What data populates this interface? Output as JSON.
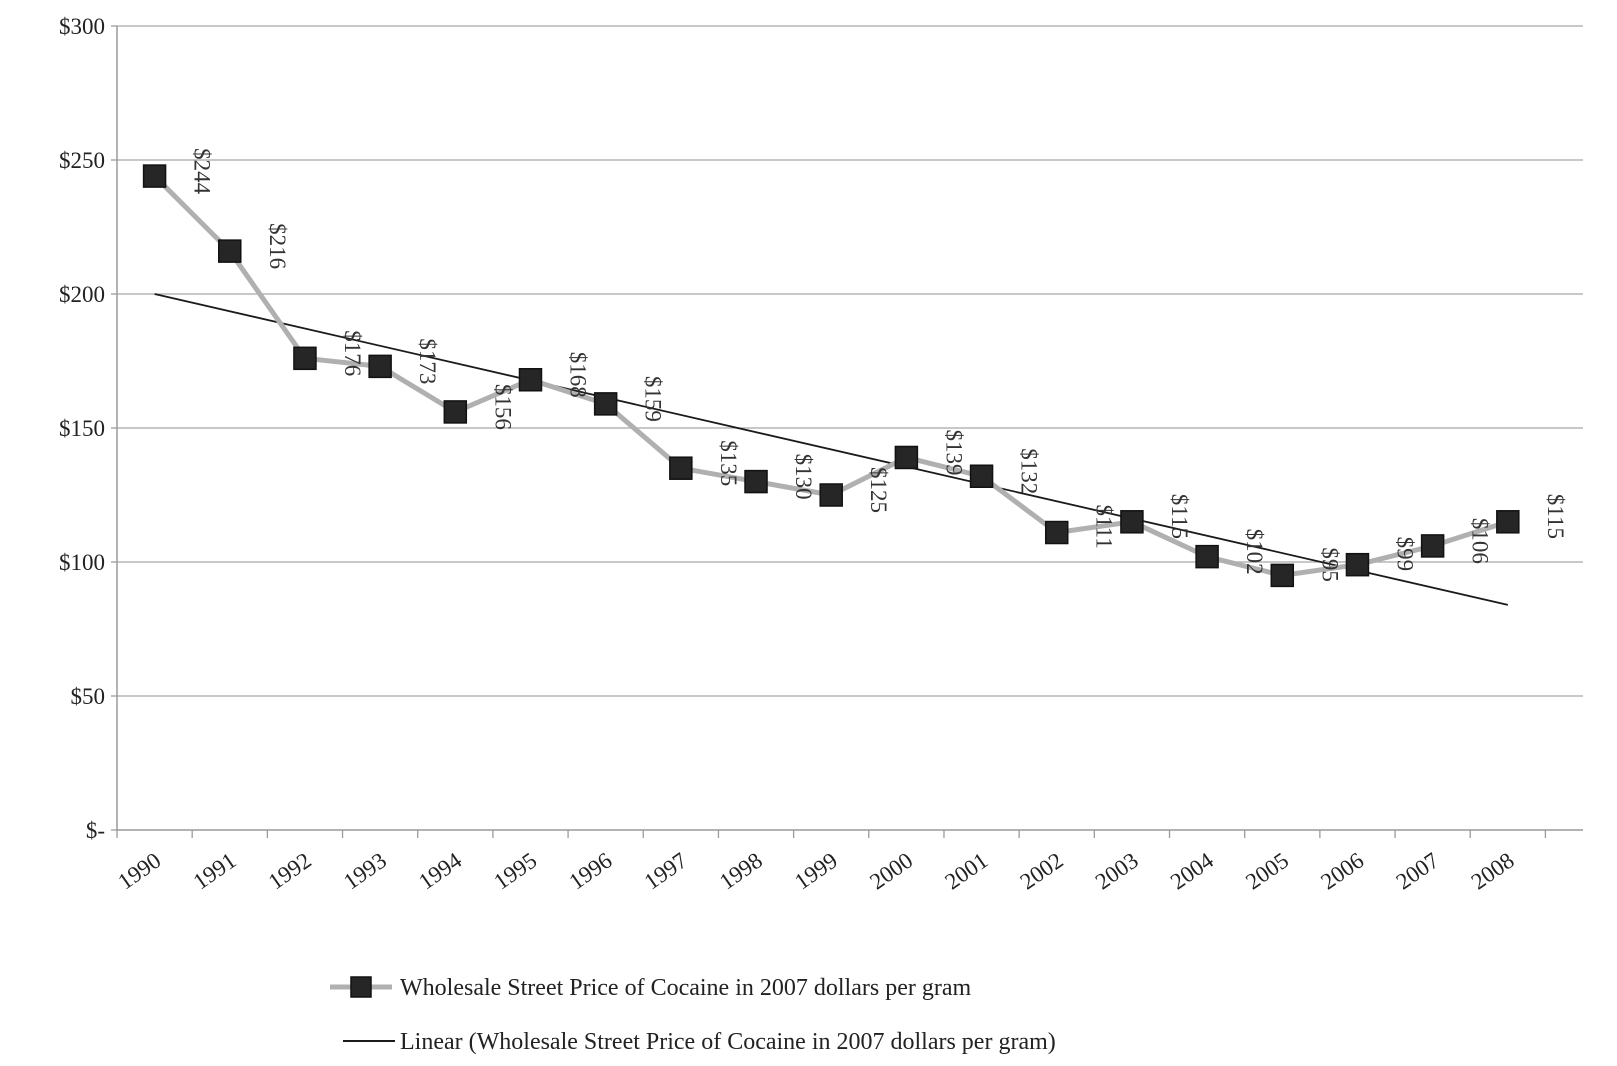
{
  "chart_data": {
    "type": "line",
    "title": "",
    "xlabel": "",
    "ylabel": "",
    "categories": [
      "1990",
      "1991",
      "1992",
      "1993",
      "1994",
      "1995",
      "1996",
      "1997",
      "1998",
      "1999",
      "2000",
      "2001",
      "2002",
      "2003",
      "2004",
      "2005",
      "2006",
      "2007",
      "2008"
    ],
    "ylim": [
      0,
      300
    ],
    "y_ticks": [
      0,
      50,
      100,
      150,
      200,
      250,
      300
    ],
    "y_tick_labels": [
      "$-",
      "$50",
      "$100",
      "$150",
      "$200",
      "$250",
      "$300"
    ],
    "grid": true,
    "legend_position": "bottom",
    "series": [
      {
        "name": "Wholesale Street Price  of Cocaine in  2007 dollars per gram",
        "kind": "line-markers",
        "color": "#b0b0b0",
        "marker_color": "#262626",
        "marker": "square",
        "values": [
          244,
          216,
          176,
          173,
          156,
          168,
          159,
          135,
          130,
          125,
          139,
          132,
          111,
          115,
          102,
          95,
          99,
          106,
          115
        ],
        "data_labels": [
          "$244",
          "$216",
          "$176",
          "$173",
          "$156",
          "$168",
          "$159",
          "$135",
          "$130",
          "$125",
          "$139",
          "$132",
          "$111",
          "$115",
          "$102",
          "$95",
          "$99",
          "$106",
          "$115"
        ]
      },
      {
        "name": "Linear (Wholesale Street Price  of Cocaine in  2007 dollars per gram)",
        "kind": "trendline",
        "color": "#1a1a1a",
        "start": 200,
        "end": 84
      }
    ]
  }
}
